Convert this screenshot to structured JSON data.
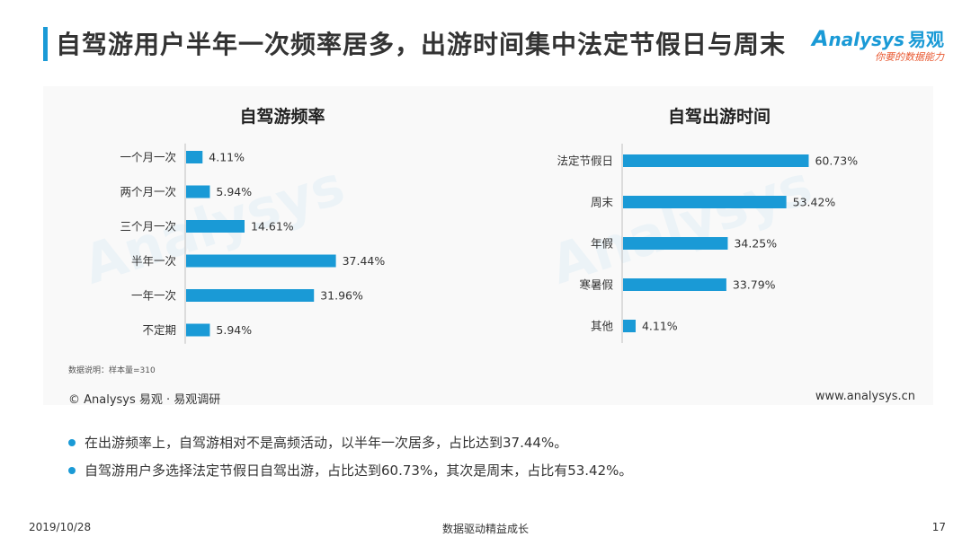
{
  "header": {
    "title": "自驾游用户半年一次频率居多，出游时间集中法定节假日与周末",
    "logo_brand_a": "A",
    "logo_brand_rest": "nalysys",
    "logo_brand_cn": "易观",
    "logo_slogan": "你要的数据能力"
  },
  "chart_data": [
    {
      "type": "bar",
      "orientation": "horizontal",
      "title": "自驾游频率",
      "categories": [
        "一个月一次",
        "两个月一次",
        "三个月一次",
        "半年一次",
        "一年一次",
        "不定期"
      ],
      "values": [
        4.11,
        5.94,
        14.61,
        37.44,
        31.96,
        5.94
      ],
      "value_labels": [
        "4.11%",
        "5.94%",
        "14.61%",
        "37.44%",
        "31.96%",
        "5.94%"
      ],
      "unit": "%",
      "color": "#1a9ad6"
    },
    {
      "type": "bar",
      "orientation": "horizontal",
      "title": "自驾出游时间",
      "categories": [
        "法定节假日",
        "周末",
        "年假",
        "寒暑假",
        "其他"
      ],
      "values": [
        60.73,
        53.42,
        34.25,
        33.79,
        4.11
      ],
      "value_labels": [
        "60.73%",
        "53.42%",
        "34.25%",
        "33.79%",
        "4.11%"
      ],
      "unit": "%",
      "color": "#1a9ad6"
    }
  ],
  "note": "数据说明：样本量=310",
  "footer": {
    "copyright": "© Analysys 易观 · 易观调研",
    "website": "www.analysys.cn"
  },
  "bullets": [
    "在出游频率上，自驾游相对不是高频活动，以半年一次居多，占比达到37.44%。",
    "自驾游用户多选择法定节假日自驾出游，占比达到60.73%，其次是周末，占比有53.42%。"
  ],
  "page_footer": {
    "date": "2019/10/28",
    "center": "数据驱动精益成长",
    "page": "17"
  },
  "colors": {
    "accent": "#1a9ad6",
    "slogan": "#e8572f"
  }
}
